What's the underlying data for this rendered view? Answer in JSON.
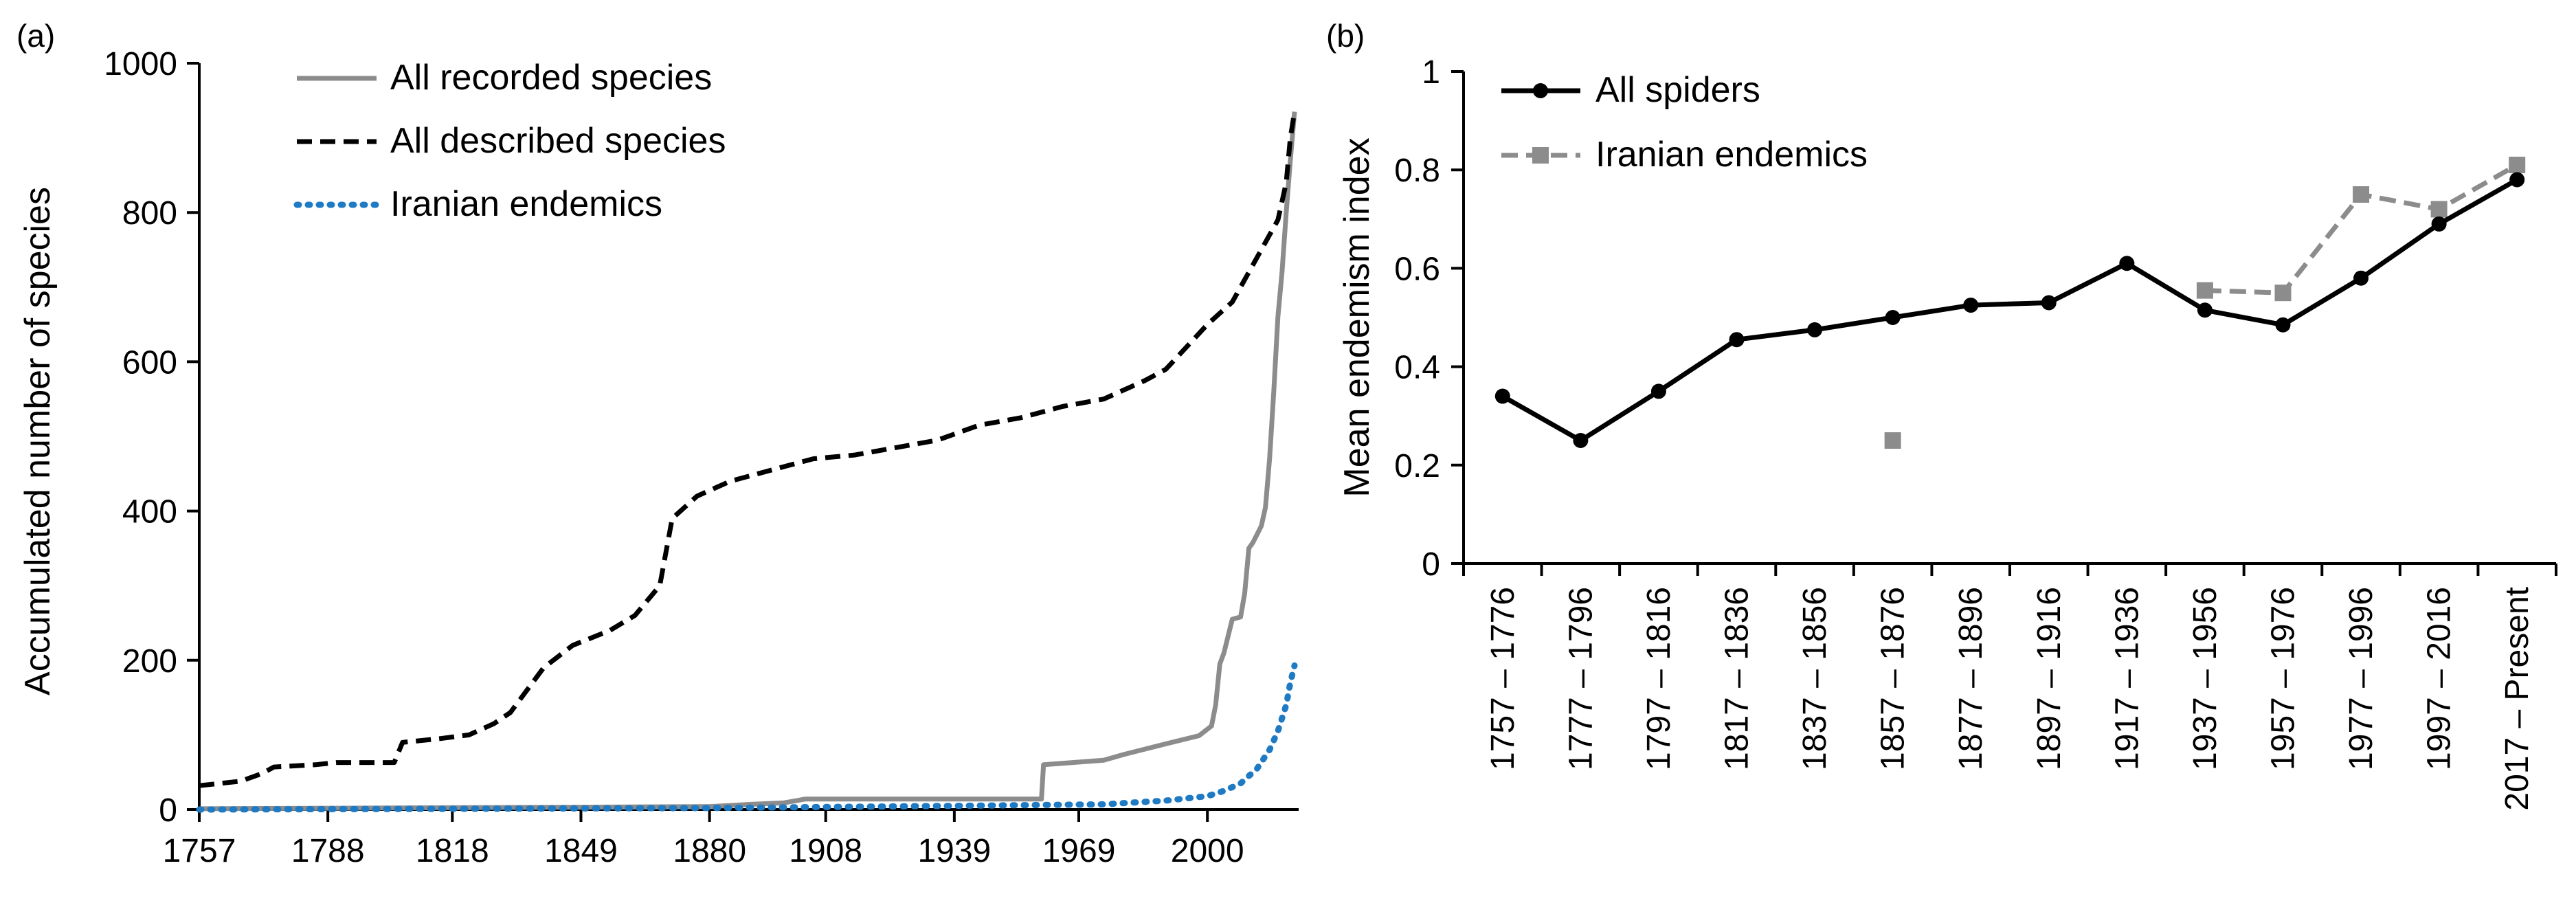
{
  "chart_data": [
    {
      "panel": "(a)",
      "type": "line",
      "title": "",
      "xlabel": "",
      "ylabel": "Accumulated number of species",
      "xlim": [
        1757,
        2022
      ],
      "ylim": [
        0,
        1000
      ],
      "x_ticks": [
        "1757",
        "1788",
        "1818",
        "1849",
        "1880",
        "1908",
        "1939",
        "1969",
        "2000"
      ],
      "y_ticks": [
        "0",
        "200",
        "400",
        "600",
        "800",
        "1000"
      ],
      "legend_position": "top-left",
      "series": [
        {
          "name": "All recorded species",
          "style": "solid",
          "color": "#8c8c8c",
          "points": [
            [
              1757,
              1
            ],
            [
              1880,
              4
            ],
            [
              1890,
              7
            ],
            [
              1898,
              9
            ],
            [
              1903,
              14
            ],
            [
              1960,
              14
            ],
            [
              1960.5,
              60
            ],
            [
              1975,
              66
            ],
            [
              1980,
              74
            ],
            [
              1990,
              88
            ],
            [
              1998,
              99
            ],
            [
              2001,
              112
            ],
            [
              2002,
              140
            ],
            [
              2003,
              195
            ],
            [
              2004,
              210
            ],
            [
              2006,
              255
            ],
            [
              2008,
              258
            ],
            [
              2009,
              290
            ],
            [
              2010,
              350
            ],
            [
              2011,
              358
            ],
            [
              2013,
              380
            ],
            [
              2014,
              405
            ],
            [
              2015,
              470
            ],
            [
              2016,
              560
            ],
            [
              2017,
              660
            ],
            [
              2018,
              720
            ],
            [
              2019,
              800
            ],
            [
              2020,
              870
            ],
            [
              2021,
              935
            ]
          ]
        },
        {
          "name": "All described species",
          "style": "dashed",
          "color": "#000000",
          "points": [
            [
              1757,
              32
            ],
            [
              1767,
              38
            ],
            [
              1772,
              48
            ],
            [
              1775,
              57
            ],
            [
              1785,
              60
            ],
            [
              1790,
              63
            ],
            [
              1804,
              63
            ],
            [
              1806,
              90
            ],
            [
              1815,
              95
            ],
            [
              1822,
              100
            ],
            [
              1828,
              115
            ],
            [
              1832,
              130
            ],
            [
              1840,
              190
            ],
            [
              1847,
              220
            ],
            [
              1856,
              240
            ],
            [
              1862,
              260
            ],
            [
              1868,
              300
            ],
            [
              1871,
              390
            ],
            [
              1877,
              420
            ],
            [
              1885,
              440
            ],
            [
              1895,
              455
            ],
            [
              1905,
              470
            ],
            [
              1915,
              475
            ],
            [
              1925,
              485
            ],
            [
              1935,
              495
            ],
            [
              1945,
              515
            ],
            [
              1955,
              525
            ],
            [
              1965,
              540
            ],
            [
              1975,
              550
            ],
            [
              1985,
              575
            ],
            [
              1990,
              590
            ],
            [
              1995,
              620
            ],
            [
              2000,
              650
            ],
            [
              2006,
              680
            ],
            [
              2010,
              720
            ],
            [
              2014,
              760
            ],
            [
              2017,
              790
            ],
            [
              2019,
              840
            ],
            [
              2020,
              900
            ],
            [
              2021,
              935
            ]
          ]
        },
        {
          "name": "Iranian endemics",
          "style": "dotted",
          "color": "#1f7ac4",
          "points": [
            [
              1757,
              0
            ],
            [
              1880,
              2
            ],
            [
              1940,
              5
            ],
            [
              1975,
              7
            ],
            [
              1990,
              12
            ],
            [
              2000,
              18
            ],
            [
              2004,
              25
            ],
            [
              2008,
              35
            ],
            [
              2012,
              55
            ],
            [
              2015,
              80
            ],
            [
              2017,
              105
            ],
            [
              2019,
              140
            ],
            [
              2020,
              170
            ],
            [
              2021,
              193
            ]
          ]
        }
      ]
    },
    {
      "panel": "(b)",
      "type": "line",
      "title": "",
      "xlabel": "",
      "ylabel": "Mean endemism index",
      "ylim": [
        0,
        1
      ],
      "y_ticks": [
        "0",
        "0.2",
        "0.4",
        "0.6",
        "0.8",
        "1"
      ],
      "legend_position": "top-left",
      "categories": [
        "1757 – 1776",
        "1777 – 1796",
        "1797 – 1816",
        "1817 – 1836",
        "1837 – 1856",
        "1857 – 1876",
        "1877 – 1896",
        "1897 – 1916",
        "1917 – 1936",
        "1937 – 1956",
        "1957 – 1976",
        "1977 – 1996",
        "1997 – 2016",
        "2017 – Present"
      ],
      "series": [
        {
          "name": "All spiders",
          "style": "solid",
          "marker": "circle",
          "color": "#000000",
          "values": [
            0.34,
            0.25,
            0.35,
            0.455,
            0.475,
            0.5,
            0.525,
            0.53,
            0.61,
            0.515,
            0.485,
            0.58,
            0.69,
            0.78
          ]
        },
        {
          "name": "Iranian endemics",
          "style": "dashed",
          "marker": "square",
          "color": "#8c8c8c",
          "values": [
            null,
            null,
            null,
            null,
            null,
            0.25,
            null,
            null,
            null,
            0.555,
            0.55,
            0.75,
            0.72,
            0.81
          ]
        }
      ]
    }
  ]
}
